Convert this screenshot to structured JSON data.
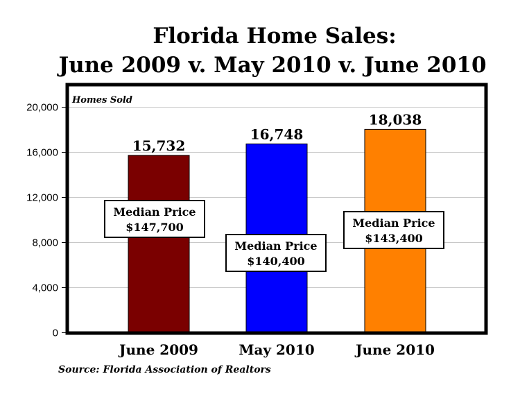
{
  "chart_data": {
    "type": "bar",
    "title_lines": [
      "Florida Home Sales:",
      "June 2009 v. May 2010 v. June 2010"
    ],
    "ylabel": "Homes Sold",
    "ylim": [
      0,
      22000
    ],
    "yticks": [
      0,
      4000,
      8000,
      12000,
      16000,
      20000
    ],
    "ytick_labels": [
      "0",
      "4,000",
      "8,000",
      "12,000",
      "16,000",
      "20,000"
    ],
    "categories": [
      "June 2009",
      "May 2010",
      "June 2010"
    ],
    "values": [
      15732,
      16748,
      18038
    ],
    "value_labels": [
      "15,732",
      "16,748",
      "18,038"
    ],
    "colors": [
      "#7a0000",
      "#0000ff",
      "#ff8000"
    ],
    "annotations": [
      {
        "line1": "Median Price",
        "line2": "$147,700"
      },
      {
        "line1": "Median Price",
        "line2": "$140,400"
      },
      {
        "line1": "Median Price",
        "line2": "$143,400"
      }
    ],
    "grid": true,
    "source": "Source: Florida Association of Realtors"
  }
}
